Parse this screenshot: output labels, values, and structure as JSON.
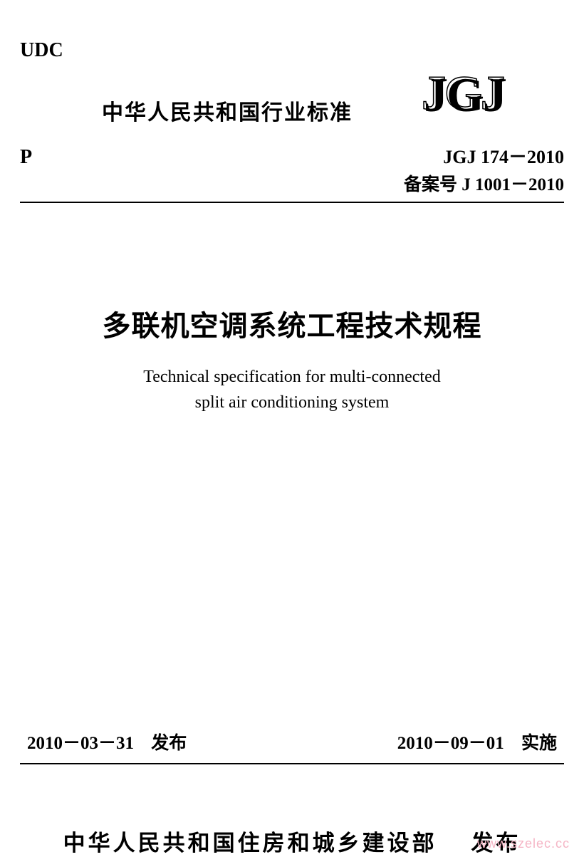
{
  "header": {
    "udc_label": "UDC",
    "standard_label": "中华人民共和国行业标准",
    "logo_text": "JGJ",
    "p_label": "P",
    "standard_code": "JGJ 174－2010",
    "filing_label": "备案号",
    "filing_code": "J 1001－2010"
  },
  "title": {
    "cn": "多联机空调系统工程技术规程",
    "en_line1": "Technical specification for multi-connected",
    "en_line2": "split air conditioning system"
  },
  "dates": {
    "issue_date": "2010－03－31",
    "issue_label": "发布",
    "effective_date": "2010－09－01",
    "effective_label": "实施"
  },
  "publisher": {
    "name": "中华人民共和国住房和城乡建设部",
    "action": "发布"
  },
  "watermark": "www.szelec.cc",
  "colors": {
    "text": "#000000",
    "background": "#ffffff",
    "watermark": "#f5b5c5"
  }
}
